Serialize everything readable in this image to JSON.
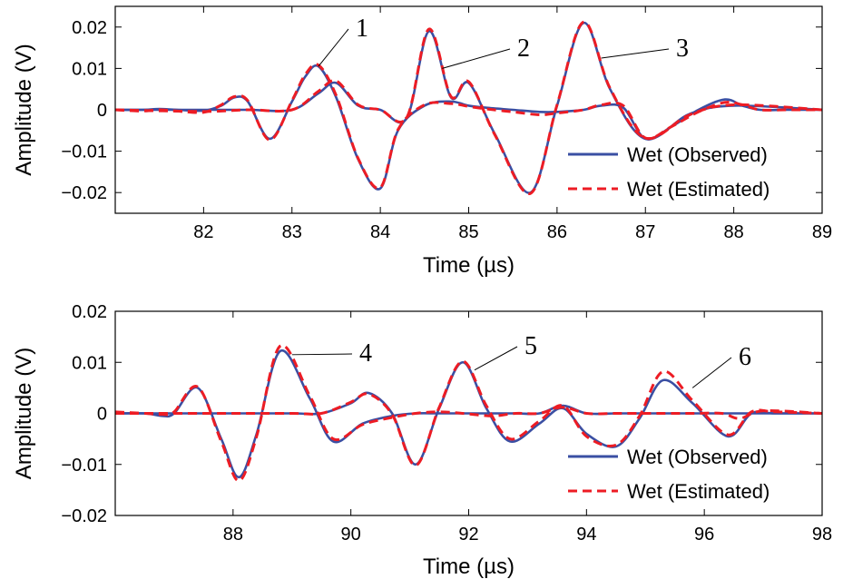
{
  "chart_data": [
    {
      "type": "line",
      "xlabel": "Time (µs)",
      "ylabel": "Amplitude (V)",
      "xlim": [
        81,
        89
      ],
      "ylim": [
        -0.025,
        0.025
      ],
      "xticks": [
        82,
        83,
        84,
        85,
        86,
        87,
        88,
        89
      ],
      "xtick_labels": [
        "82",
        "83",
        "84",
        "85",
        "86",
        "87",
        "88",
        "89"
      ],
      "yticks": [
        -0.02,
        -0.01,
        0,
        0.01,
        0.02
      ],
      "ytick_labels": [
        "−0.02",
        "−0.01",
        "0",
        "0.01",
        "0.02"
      ],
      "grid": false,
      "legend_position": "bottom-right",
      "legend": [
        {
          "label": "Wet (Observed)",
          "style": "solid",
          "color": "#3a4fa3"
        },
        {
          "label": "Wet (Estimated)",
          "style": "dashed",
          "color": "#ed1c24"
        }
      ],
      "annotations": [
        {
          "text": "1",
          "x": 83.5,
          "y": 0.014
        },
        {
          "text": "2",
          "x": 85.4,
          "y": 0.016
        },
        {
          "text": "3",
          "x": 87.3,
          "y": 0.016
        }
      ],
      "series": [
        {
          "style": "solid",
          "color": "#3a4fa3",
          "x": [
            81.0,
            81.3,
            81.5,
            81.7,
            82.0,
            82.2,
            82.35,
            82.5,
            82.75,
            83.0,
            83.15,
            83.3,
            83.5,
            83.75,
            84.0,
            84.2,
            84.5,
            84.8,
            85.0,
            85.2,
            85.5,
            85.8,
            86.0,
            86.3,
            86.5,
            86.75,
            87.0,
            87.3,
            87.6,
            87.9,
            88.1,
            88.3,
            88.6,
            89.0
          ],
          "y": [
            0,
            0,
            0.0002,
            0,
            -0.0002,
            0.001,
            0.003,
            0.002,
            -0.007,
            0.002,
            0.008,
            0.0105,
            0.003,
            -0.012,
            -0.019,
            -0.005,
            0.001,
            0.002,
            0.001,
            0.0005,
            0,
            -0.0005,
            -0.0005,
            0,
            0.001,
            0.0005,
            -0.007,
            -0.004,
            0,
            0.0025,
            0.001,
            0,
            0,
            0
          ]
        },
        {
          "style": "solid",
          "color": "#3a4fa3",
          "x": [
            81.0,
            82.0,
            82.5,
            83.0,
            83.3,
            83.5,
            83.75,
            84.0,
            84.3,
            84.55,
            84.8,
            85.0,
            85.3,
            85.7,
            86.0,
            86.3,
            86.6,
            87.0,
            87.5,
            88.0,
            89.0
          ],
          "y": [
            0,
            0,
            0,
            0,
            0.004,
            0.0065,
            0.001,
            0,
            -0.002,
            0.019,
            0.003,
            0.0065,
            -0.006,
            -0.02,
            0.001,
            0.021,
            0.005,
            -0.007,
            -0.001,
            0.001,
            0
          ]
        },
        {
          "style": "dashed",
          "color": "#ed1c24",
          "x": [
            81.0,
            81.3,
            81.5,
            81.7,
            82.0,
            82.2,
            82.35,
            82.5,
            82.75,
            83.0,
            83.15,
            83.3,
            83.5,
            83.75,
            84.0,
            84.2,
            84.5,
            84.8,
            85.0,
            85.2,
            85.5,
            85.8,
            86.0,
            86.3,
            86.5,
            86.75,
            87.0,
            87.3,
            87.6,
            87.9,
            88.1,
            88.3,
            88.6,
            89.0
          ],
          "y": [
            0,
            -0.0003,
            0,
            -0.0003,
            -0.0006,
            0.0012,
            0.0032,
            0.0022,
            -0.0073,
            0.0022,
            0.0085,
            0.0108,
            0.0035,
            -0.0118,
            -0.0188,
            -0.0048,
            0.0012,
            0.0015,
            0.0008,
            0.0002,
            -0.0005,
            -0.0012,
            -0.0008,
            0,
            0.0012,
            0.001,
            -0.0068,
            -0.004,
            -0.0005,
            0.0018,
            0.0012,
            0,
            0,
            0
          ]
        },
        {
          "style": "dashed",
          "color": "#ed1c24",
          "x": [
            81.0,
            82.0,
            82.5,
            83.0,
            83.3,
            83.5,
            83.75,
            84.0,
            84.3,
            84.55,
            84.8,
            85.0,
            85.3,
            85.7,
            86.0,
            86.3,
            86.6,
            87.0,
            87.5,
            88.0,
            89.0
          ],
          "y": [
            0,
            -0.0004,
            0,
            0,
            0.0045,
            0.007,
            0.0012,
            0,
            -0.0018,
            0.0195,
            0.0032,
            0.0068,
            -0.0062,
            -0.0202,
            0.0012,
            0.0212,
            0.0052,
            -0.0068,
            -0.0012,
            0.0012,
            0
          ]
        }
      ]
    },
    {
      "type": "line",
      "xlabel": "Time (µs)",
      "ylabel": "Amplitude (V)",
      "xlim": [
        86,
        98
      ],
      "ylim": [
        -0.02,
        0.02
      ],
      "xticks": [
        88,
        90,
        92,
        94,
        96,
        98
      ],
      "xtick_labels": [
        "88",
        "90",
        "92",
        "94",
        "96",
        "98"
      ],
      "yticks": [
        -0.02,
        -0.01,
        0,
        0.01,
        0.02
      ],
      "ytick_labels": [
        "−0.02",
        "−0.01",
        "0",
        "0.01",
        "0.02"
      ],
      "grid": false,
      "legend_position": "bottom-right",
      "legend": [
        {
          "label": "Wet (Observed)",
          "style": "solid",
          "color": "#3a4fa3"
        },
        {
          "label": "Wet (Estimated)",
          "style": "dashed",
          "color": "#ed1c24"
        }
      ],
      "annotations": [
        {
          "text": "4",
          "x": 89.8,
          "y": 0.01
        },
        {
          "text": "5",
          "x": 93.0,
          "y": 0.012
        },
        {
          "text": "6",
          "x": 96.3,
          "y": 0.009
        }
      ],
      "series": [
        {
          "style": "solid",
          "color": "#3a4fa3",
          "x": [
            86.0,
            86.5,
            86.8,
            87.0,
            87.4,
            87.8,
            88.1,
            88.4,
            88.8,
            89.3,
            89.7,
            90.2,
            90.7,
            91.1,
            91.5,
            91.9,
            92.4,
            92.8,
            93.2,
            93.6,
            94.0,
            94.5,
            95.0,
            95.4,
            95.8,
            96.3,
            96.6,
            97.0,
            98.0
          ],
          "y": [
            0,
            0,
            -0.0005,
            0,
            0.005,
            -0.005,
            -0.0125,
            -0.004,
            0.0122,
            0.003,
            -0.0055,
            -0.002,
            -0.0005,
            0,
            0,
            0,
            0,
            0,
            0,
            0.0015,
            0,
            0,
            0,
            0,
            0,
            0,
            0,
            0,
            0
          ]
        },
        {
          "style": "solid",
          "color": "#3a4fa3",
          "x": [
            86.0,
            88.0,
            89.0,
            89.5,
            90.0,
            90.3,
            90.7,
            91.1,
            91.5,
            91.9,
            92.3,
            92.7,
            93.2,
            93.6,
            94.0,
            94.5,
            94.9,
            95.3,
            95.8,
            96.4,
            96.8,
            97.2,
            98.0
          ],
          "y": [
            0,
            0,
            0,
            0,
            0.002,
            0.004,
            0,
            -0.01,
            0.001,
            0.01,
            0.001,
            -0.0055,
            -0.002,
            0.001,
            -0.004,
            -0.0065,
            -0.001,
            0.0065,
            0.002,
            -0.0045,
            0,
            0,
            0
          ]
        },
        {
          "style": "dashed",
          "color": "#ed1c24",
          "x": [
            86.0,
            86.5,
            86.8,
            87.0,
            87.4,
            87.8,
            88.1,
            88.4,
            88.8,
            89.3,
            89.7,
            90.2,
            90.7,
            91.1,
            91.5,
            91.9,
            92.4,
            92.8,
            93.2,
            93.6,
            94.0,
            94.5,
            95.0,
            95.4,
            95.8,
            96.3,
            96.6,
            97.0,
            98.0
          ],
          "y": [
            0.0003,
            0,
            -0.0002,
            0.0003,
            0.0052,
            -0.0055,
            -0.0132,
            -0.0045,
            0.0132,
            0.0035,
            -0.005,
            -0.0022,
            -0.0008,
            0,
            0.0003,
            0,
            -0.0005,
            0,
            0,
            0.0012,
            0,
            0,
            0,
            0,
            0,
            0,
            -0.001,
            0.0005,
            0
          ]
        },
        {
          "style": "dashed",
          "color": "#ed1c24",
          "x": [
            86.0,
            88.0,
            89.0,
            89.5,
            90.0,
            90.3,
            90.7,
            91.1,
            91.5,
            91.9,
            92.3,
            92.7,
            93.2,
            93.6,
            94.0,
            94.5,
            94.9,
            95.3,
            95.8,
            96.4,
            96.8,
            97.2,
            98.0
          ],
          "y": [
            0,
            0,
            0,
            0,
            0.0022,
            0.0038,
            -0.0002,
            -0.0102,
            0.0012,
            0.0102,
            0.0015,
            -0.005,
            -0.0015,
            0.0015,
            -0.0045,
            -0.0062,
            -0.0005,
            0.0082,
            0.0025,
            -0.0042,
            0.0003,
            0.0003,
            0
          ]
        }
      ]
    }
  ]
}
